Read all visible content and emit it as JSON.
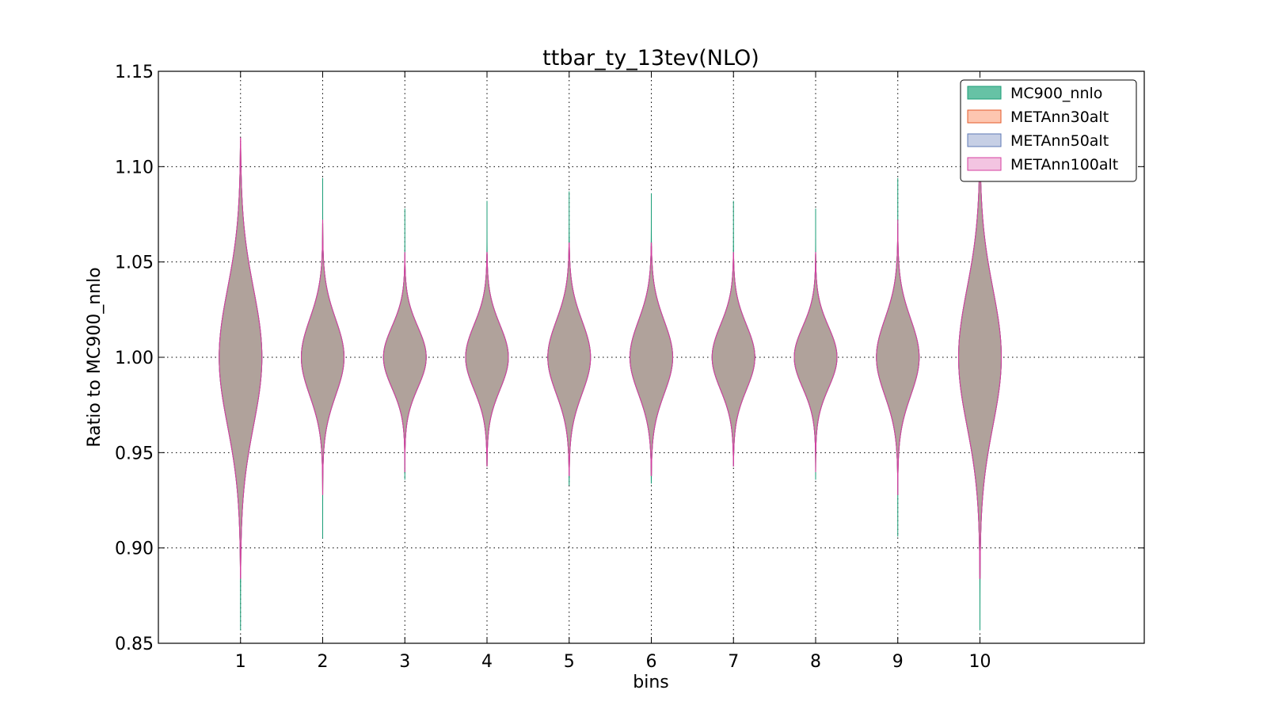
{
  "chart_data": {
    "type": "violin",
    "title": "ttbar_ty_13tev(NLO)",
    "xlabel": "bins",
    "ylabel": "Ratio to MC900_nnlo",
    "categories": [
      "1",
      "2",
      "3",
      "4",
      "5",
      "6",
      "7",
      "8",
      "9",
      "10"
    ],
    "x_ticks": [
      1,
      2,
      3,
      4,
      5,
      6,
      7,
      8,
      9,
      10
    ],
    "xlim": [
      0,
      12
    ],
    "ylim": [
      0.85,
      1.15
    ],
    "y_ticks": [
      0.85,
      0.9,
      0.95,
      1.0,
      1.05,
      1.1,
      1.15
    ],
    "y_tick_labels": [
      "0.85",
      "0.90",
      "0.95",
      "1.00",
      "1.05",
      "1.10",
      "1.15"
    ],
    "grid": true,
    "legend_position": "top-right",
    "series": [
      {
        "name": "MC900_nnlo",
        "color": "#66c2a5",
        "edge": "#1b9e77",
        "alpha": 1.0,
        "min": [
          0.857,
          0.905,
          0.936,
          0.943,
          0.933,
          0.934,
          0.943,
          0.936,
          0.906,
          0.857
        ],
        "max": [
          1.112,
          1.094,
          1.078,
          1.082,
          1.087,
          1.086,
          1.082,
          1.078,
          1.094,
          1.112
        ]
      },
      {
        "name": "METAnn30alt",
        "color": "#fc8d62",
        "edge": "#e45a2a",
        "alpha": 0.5,
        "min": [
          0.884,
          0.928,
          0.94,
          0.943,
          0.938,
          0.938,
          0.943,
          0.94,
          0.928,
          0.884
        ],
        "max": [
          1.112,
          1.07,
          1.054,
          1.054,
          1.058,
          1.058,
          1.054,
          1.054,
          1.07,
          1.112
        ]
      },
      {
        "name": "METAnn50alt",
        "color": "#8da0cb",
        "edge": "#5f79b5",
        "alpha": 0.25,
        "min": [
          0.884,
          0.928,
          0.94,
          0.943,
          0.938,
          0.938,
          0.943,
          0.94,
          0.928,
          0.884
        ],
        "max": [
          1.112,
          1.07,
          1.054,
          1.054,
          1.058,
          1.058,
          1.054,
          1.054,
          1.07,
          1.112
        ]
      },
      {
        "name": "METAnn100alt",
        "color": "#e78ac3",
        "edge": "#d63fa0",
        "alpha": 0.15,
        "min": [
          0.884,
          0.928,
          0.94,
          0.943,
          0.938,
          0.938,
          0.943,
          0.94,
          0.928,
          0.884
        ],
        "max": [
          1.115,
          1.072,
          1.055,
          1.055,
          1.06,
          1.06,
          1.055,
          1.055,
          1.072,
          1.115
        ]
      }
    ],
    "violin_half_width": [
      0.26,
      0.26,
      0.26,
      0.26,
      0.26,
      0.26,
      0.26,
      0.26,
      0.26,
      0.26
    ],
    "violin_sigma": [
      0.036,
      0.02,
      0.016,
      0.017,
      0.019,
      0.019,
      0.017,
      0.016,
      0.02,
      0.036
    ]
  }
}
